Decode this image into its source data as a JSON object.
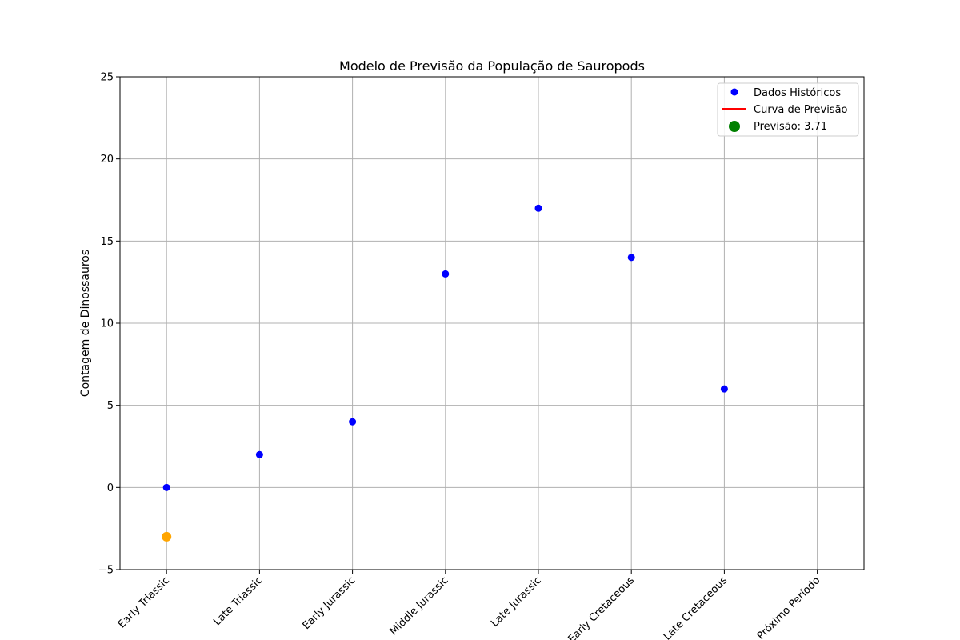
{
  "chart_data": {
    "type": "scatter",
    "title": "Modelo de Previsão da População de Sauropods",
    "xlabel": "",
    "ylabel": "Contagem de Dinossauros",
    "categories": [
      "Early Triassic",
      "Late Triassic",
      "Early Jurassic",
      "Middle Jurassic",
      "Late Jurassic",
      "Early Cretaceous",
      "Late Cretaceous",
      "Próximo Período"
    ],
    "ylim": [
      -5,
      25
    ],
    "yticks": [
      -5,
      0,
      5,
      10,
      15,
      20,
      25
    ],
    "ytick_labels": [
      "−5",
      "0",
      "5",
      "10",
      "15",
      "20",
      "25"
    ],
    "grid": true,
    "legend_position": "top-right",
    "series": [
      {
        "name": "Dados Históricos",
        "kind": "scatter",
        "color": "#0000ff",
        "points": [
          {
            "x": "Early Triassic",
            "y": 0
          },
          {
            "x": "Late Triassic",
            "y": 2
          },
          {
            "x": "Early Jurassic",
            "y": 4
          },
          {
            "x": "Middle Jurassic",
            "y": 13
          },
          {
            "x": "Late Jurassic",
            "y": 17
          },
          {
            "x": "Early Cretaceous",
            "y": 14
          },
          {
            "x": "Late Cretaceous",
            "y": 6
          }
        ]
      },
      {
        "name": "Curva de Previsão",
        "kind": "line",
        "color": "#ff0000",
        "points": []
      },
      {
        "name": "Previsão: 3.71",
        "kind": "scatter",
        "color": "#008000",
        "points": []
      },
      {
        "kind": "scatter",
        "color": "#ffa500",
        "points": [
          {
            "x": "Early Triassic",
            "y": -3
          }
        ]
      }
    ]
  }
}
